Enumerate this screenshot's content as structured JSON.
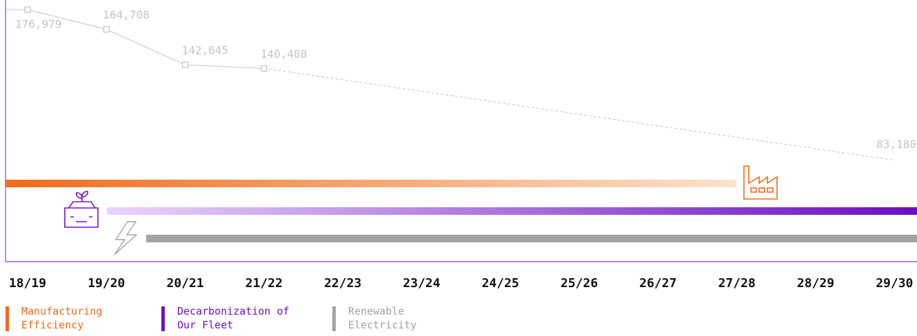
{
  "chart_data": {
    "type": "line",
    "categories": [
      "18/19",
      "19/20",
      "20/21",
      "21/22",
      "22/23",
      "23/24",
      "24/25",
      "25/26",
      "26/27",
      "27/28",
      "28/29",
      "29/30"
    ],
    "series": [
      {
        "name": null,
        "color": "#c4c4c4",
        "values": [
          176979,
          164708,
          142645,
          140408,
          null,
          null,
          null,
          null,
          null,
          null,
          null,
          83180
        ],
        "value_labels": [
          "176,979",
          "164,708",
          "142,645",
          "140,408",
          null,
          null,
          null,
          null,
          null,
          null,
          null,
          "83,180"
        ]
      }
    ],
    "bridge_gaps_dashed": true,
    "ylim": [
      20000,
      183000
    ],
    "legend": [
      {
        "name": "Manufacturing Efficiency",
        "color": "#ef6b1a"
      },
      {
        "name": "Decarbonization of Our Fleet",
        "color": "#6e12c2"
      },
      {
        "name": "Renewable Electricity",
        "color": "#a3a3a3"
      }
    ]
  }
}
